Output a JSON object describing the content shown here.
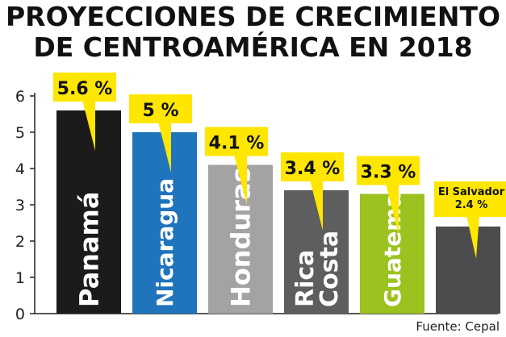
{
  "title": [
    "PROYECCIONES DE CRECIMIENTO",
    "DE CENTROAMÉRICA EN 2018"
  ],
  "source": "Fuente: Cepal",
  "chart_data": {
    "type": "bar",
    "categories": [
      "Panamá",
      "Nicaragua",
      "Honduras",
      "Costa Rica",
      "Guatemala",
      "El Salvador"
    ],
    "category_lines": [
      [
        "Panamá"
      ],
      [
        "Nicaragua"
      ],
      [
        "Honduras"
      ],
      [
        "Costa",
        "Rica"
      ],
      [
        "Guatemala"
      ],
      []
    ],
    "values": [
      5.6,
      5.0,
      4.1,
      3.4,
      3.3,
      2.4
    ],
    "data_labels": [
      [
        "5.6 %"
      ],
      [
        "5 %"
      ],
      [
        "4.1 %"
      ],
      [
        "3.4 %"
      ],
      [
        "3.3 %"
      ],
      [
        "El Salvador",
        "2.4 %"
      ]
    ],
    "colors": [
      "#1b1b1b",
      "#1f74bb",
      "#a3a3a3",
      "#5e5e5e",
      "#9cc21f",
      "#4c4c4c"
    ],
    "label_color": "#ffe600",
    "ylim": [
      0,
      6
    ],
    "yticks": [
      "0",
      "1",
      "2",
      "3",
      "4",
      "5",
      "6"
    ],
    "grid": false,
    "legend": "none"
  }
}
